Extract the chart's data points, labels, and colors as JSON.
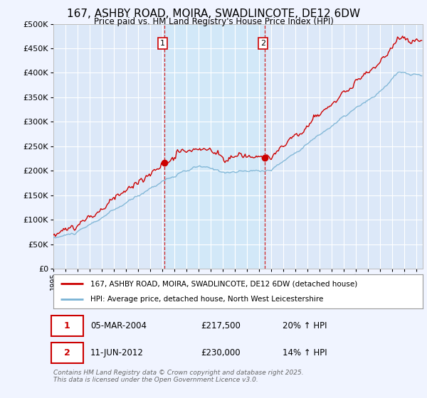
{
  "title": "167, ASHBY ROAD, MOIRA, SWADLINCOTE, DE12 6DW",
  "subtitle": "Price paid vs. HM Land Registry's House Price Index (HPI)",
  "legend_line1": "167, ASHBY ROAD, MOIRA, SWADLINCOTE, DE12 6DW (detached house)",
  "legend_line2": "HPI: Average price, detached house, North West Leicestershire",
  "footnote": "Contains HM Land Registry data © Crown copyright and database right 2025.\nThis data is licensed under the Open Government Licence v3.0.",
  "sale1_date": "05-MAR-2004",
  "sale1_price": "£217,500",
  "sale1_hpi": "20% ↑ HPI",
  "sale2_date": "11-JUN-2012",
  "sale2_price": "£230,000",
  "sale2_hpi": "14% ↑ HPI",
  "sale1_year": 2004.17,
  "sale2_year": 2012.44,
  "background_color": "#f0f4ff",
  "plot_bg": "#dce8f8",
  "shade_color": "#d0e4f7",
  "hpi_color": "#7ab3d4",
  "price_color": "#cc0000",
  "vline_color": "#cc0000",
  "ylim": [
    0,
    500000
  ],
  "xlim_start": 1995,
  "xlim_end": 2025.5,
  "yticks": [
    0,
    50000,
    100000,
    150000,
    200000,
    250000,
    300000,
    350000,
    400000,
    450000,
    500000
  ]
}
